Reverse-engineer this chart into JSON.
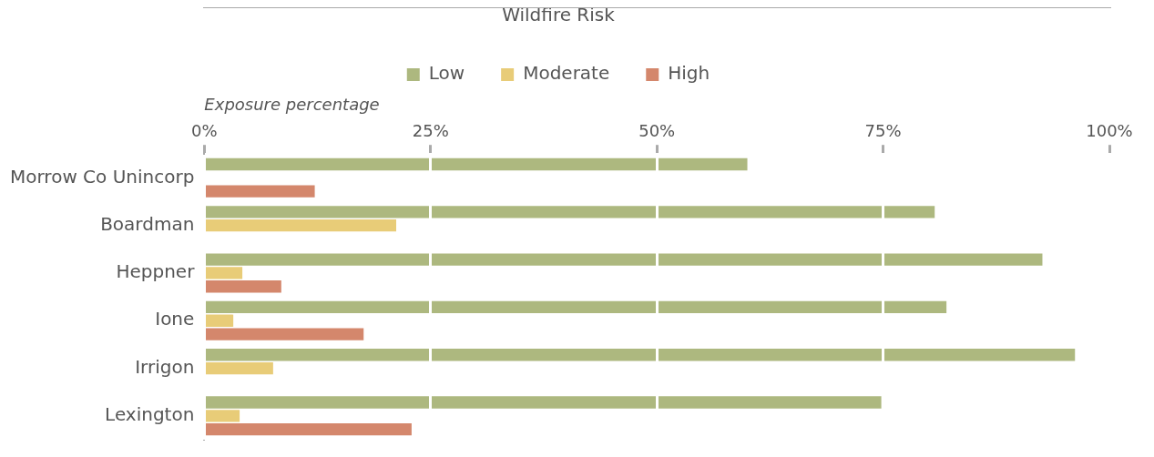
{
  "chart_data": {
    "type": "bar",
    "orientation": "horizontal",
    "legend_title": "Wildfire Risk",
    "xlabel": "Exposure percentage",
    "categories": [
      "Morrow Co Unincorp",
      "Boardman",
      "Heppner",
      "Ione",
      "Irrigon",
      "Lexington"
    ],
    "series": [
      {
        "name": "Low",
        "color": "#adb87f",
        "values": [
          60,
          80.7,
          92.6,
          82,
          96.2,
          74.8
        ]
      },
      {
        "name": "Moderate",
        "color": "#e8cc78",
        "values": [
          null,
          21.2,
          4.2,
          3.2,
          7.6,
          3.9
        ]
      },
      {
        "name": "High",
        "color": "#d4876c",
        "values": [
          12.2,
          null,
          8.5,
          17.6,
          null,
          22.9
        ]
      }
    ],
    "xlim": [
      0,
      100
    ],
    "xticks": [
      {
        "value": 0,
        "label": "0%"
      },
      {
        "value": 25,
        "label": "25%"
      },
      {
        "value": 50,
        "label": "50%"
      },
      {
        "value": 75,
        "label": "75%"
      },
      {
        "value": 100,
        "label": "100%"
      }
    ],
    "grid": "x",
    "legend": "top"
  }
}
